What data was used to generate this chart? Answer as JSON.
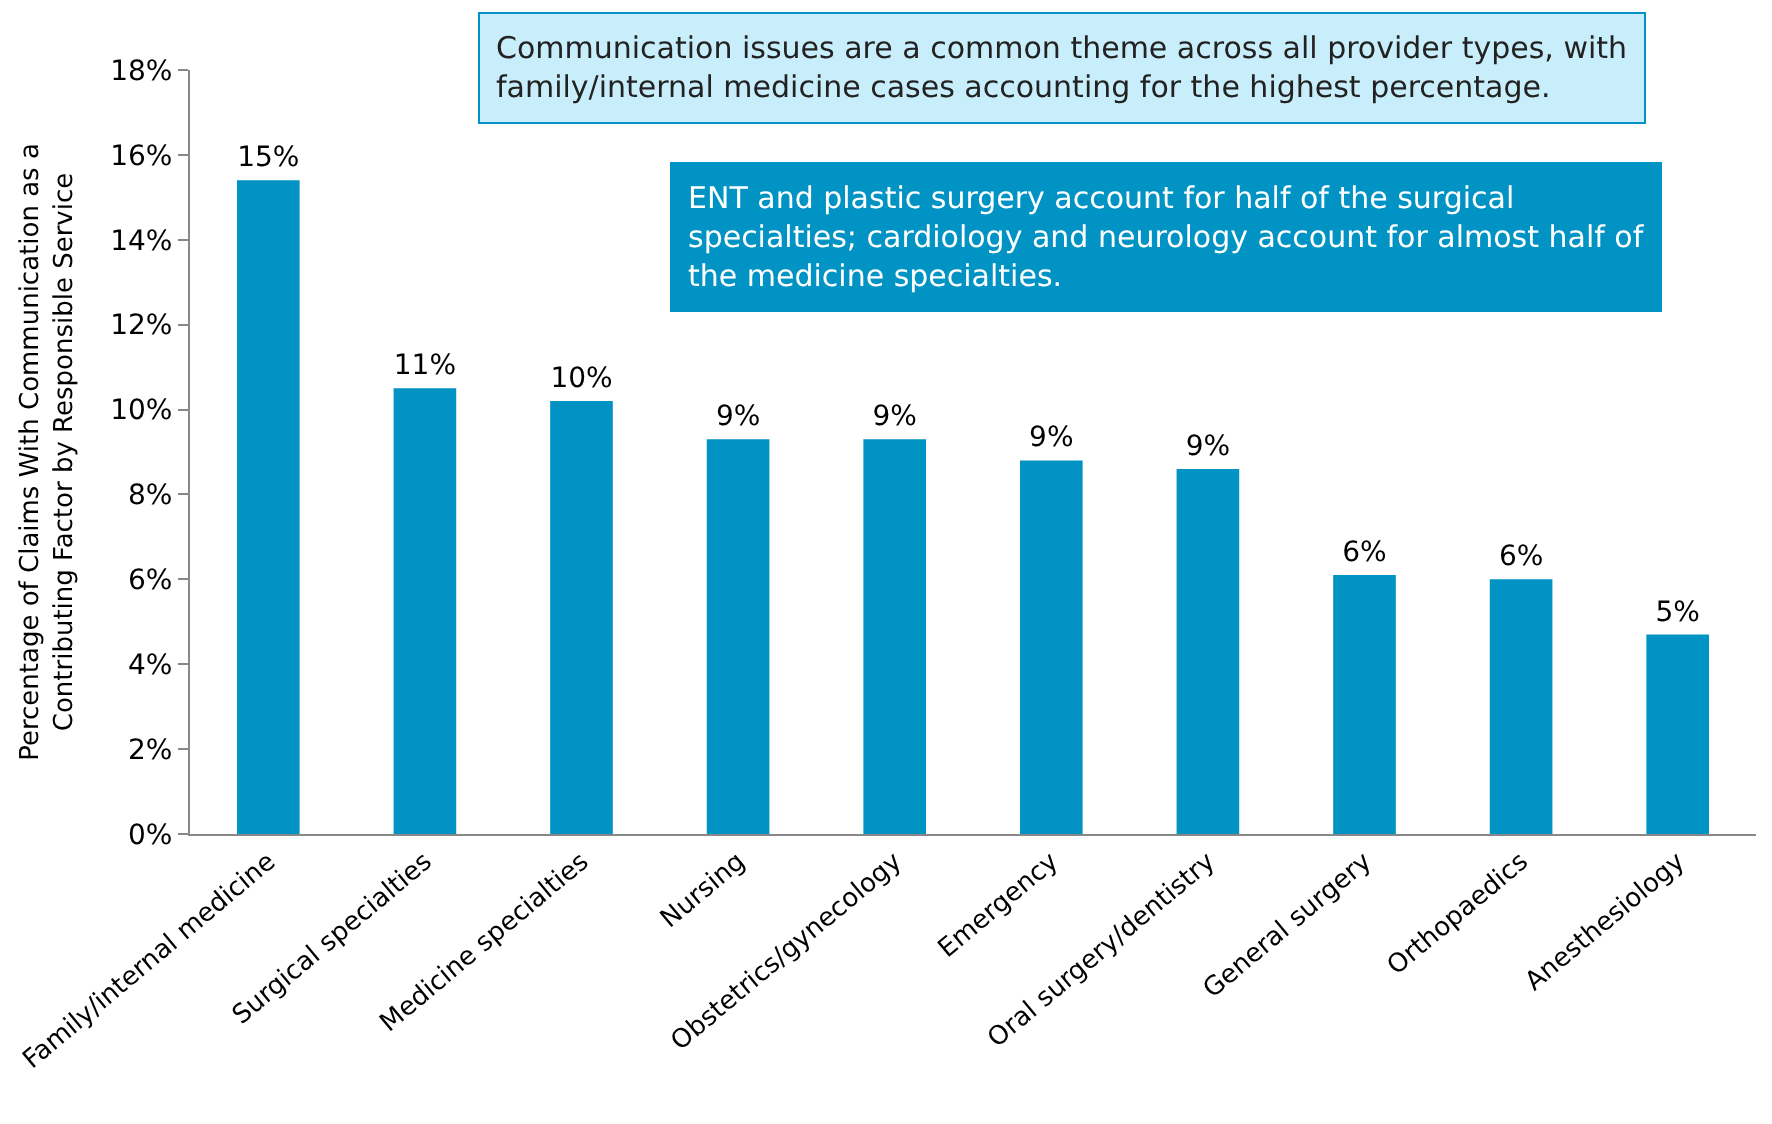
{
  "chart_data": {
    "type": "bar",
    "categories": [
      "Family/internal medicine",
      "Surgical specialties",
      "Medicine specialties",
      "Nursing",
      "Obstetrics/gynecology",
      "Emergency",
      "Oral surgery/dentistry",
      "General surgery",
      "Orthopaedics",
      "Anesthesiology"
    ],
    "values": [
      15.4,
      10.5,
      10.2,
      9.3,
      9.3,
      8.8,
      8.6,
      6.1,
      6.0,
      4.7
    ],
    "value_labels": [
      "15%",
      "11%",
      "10%",
      "9%",
      "9%",
      "9%",
      "9%",
      "6%",
      "6%",
      "5%"
    ],
    "color": "#0093c4",
    "ylabel": "Percentage of Claims With Communication as a\nContributing Factor by Responsible Service",
    "ylim": [
      0,
      18
    ],
    "yticks": [
      {
        "value": 0,
        "label": "0%"
      },
      {
        "value": 2,
        "label": "2%"
      },
      {
        "value": 4,
        "label": "4%"
      },
      {
        "value": 6,
        "label": "6%"
      },
      {
        "value": 8,
        "label": "8%"
      },
      {
        "value": 10,
        "label": "10%"
      },
      {
        "value": 12,
        "label": "12%"
      },
      {
        "value": 14,
        "label": "14%"
      },
      {
        "value": 16,
        "label": "16%"
      },
      {
        "value": 18,
        "label": "18%"
      }
    ],
    "legend": false,
    "annotations": [
      "Communication issues are a common theme across all provider types, with\nfamily/internal medicine cases accounting for the highest percentage.",
      "ENT and plastic surgery account for half of the surgical\nspecialties; cardiology and neurology account for almost half of\nthe medicine specialties."
    ]
  }
}
